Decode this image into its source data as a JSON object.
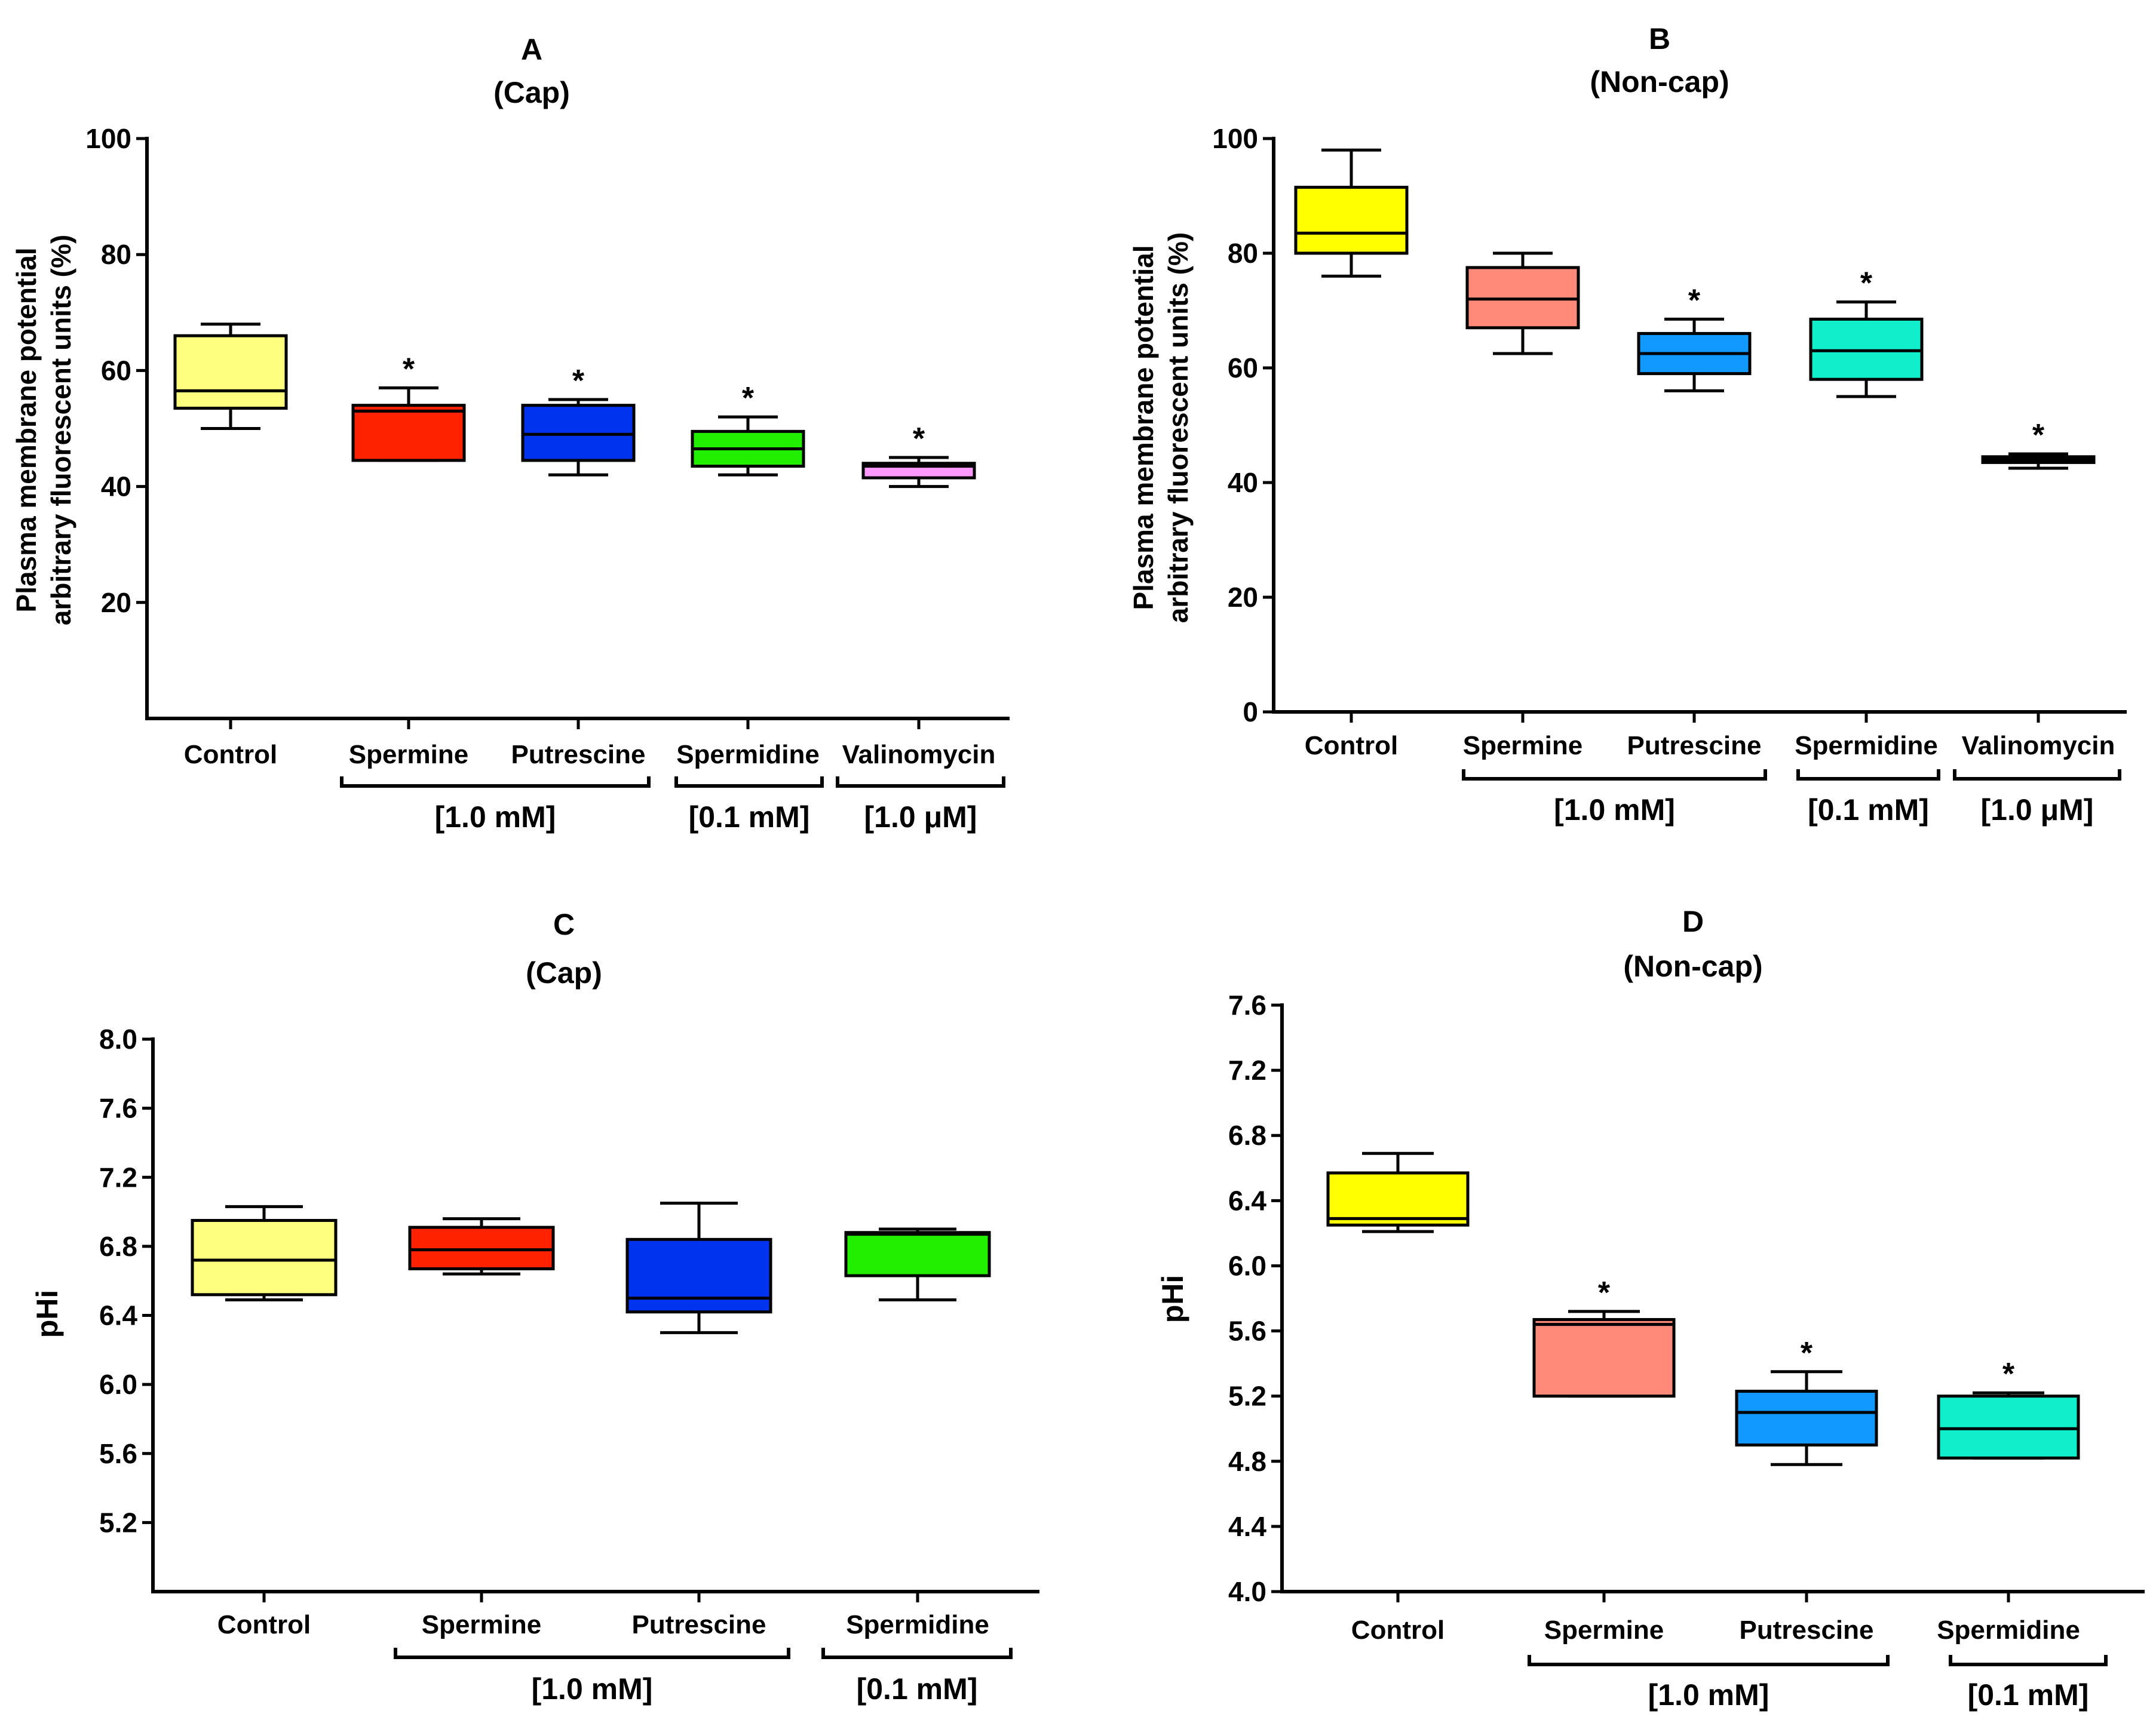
{
  "chart_data": [
    {
      "type": "box",
      "panel": "A",
      "title": "A",
      "subtitle": "(Cap)",
      "ylabel": [
        "Plasma membrane potential",
        "arbitrary fluorescent units (%)"
      ],
      "ylim": [
        0,
        100
      ],
      "yticks": [
        "20",
        "40",
        "60",
        "80",
        "100"
      ],
      "ytick_values": [
        20,
        40,
        60,
        80,
        100
      ],
      "categories": [
        "Control",
        "Spermine",
        "Putrescine",
        "Spermidine",
        "Valinomycin"
      ],
      "colors": [
        "#FFFF7F",
        "#FF2200",
        "#0033EE",
        "#22EE00",
        "#FF99FF"
      ],
      "boxes": [
        {
          "min": 50,
          "q1": 53.5,
          "median": 56.5,
          "q3": 66,
          "max": 68,
          "sig": ""
        },
        {
          "min": 44.5,
          "q1": 44.5,
          "median": 53,
          "q3": 54,
          "max": 57,
          "sig": "*"
        },
        {
          "min": 42,
          "q1": 44.5,
          "median": 49,
          "q3": 54,
          "max": 55,
          "sig": "*"
        },
        {
          "min": 42,
          "q1": 43.5,
          "median": 46.5,
          "q3": 49.5,
          "max": 52,
          "sig": "*"
        },
        {
          "min": 40,
          "q1": 41.5,
          "median": 43.5,
          "q3": 44,
          "max": 45,
          "sig": "*"
        }
      ],
      "groups": [
        {
          "label": "[1.0 mM]",
          "from": 1,
          "to": 2
        },
        {
          "label": "[0.1 mM]",
          "from": 3,
          "to": 3
        },
        {
          "label": "[1.0 μM]",
          "from": 4,
          "to": 4
        }
      ]
    },
    {
      "type": "box",
      "panel": "B",
      "title": "B",
      "subtitle": "(Non-cap)",
      "ylabel": [
        "Plasma membrane potential",
        "arbitrary fluorescent units (%)"
      ],
      "ylim": [
        0,
        100
      ],
      "yticks": [
        "0",
        "20",
        "40",
        "60",
        "80",
        "100"
      ],
      "ytick_values": [
        0,
        20,
        40,
        60,
        80,
        100
      ],
      "categories": [
        "Control",
        "Spermine",
        "Putrescine",
        "Spermidine",
        "Valinomycin"
      ],
      "colors": [
        "#FFFF00",
        "#FF8A7A",
        "#1199FF",
        "#11EECC",
        "#111111"
      ],
      "boxes": [
        {
          "min": 76,
          "q1": 80,
          "median": 83.5,
          "q3": 91.5,
          "max": 98,
          "sig": ""
        },
        {
          "min": 62.5,
          "q1": 67,
          "median": 72,
          "q3": 77.5,
          "max": 80,
          "sig": ""
        },
        {
          "min": 56,
          "q1": 59,
          "median": 62.5,
          "q3": 66,
          "max": 68.5,
          "sig": "*"
        },
        {
          "min": 55,
          "q1": 58,
          "median": 63,
          "q3": 68.5,
          "max": 71.5,
          "sig": "*"
        },
        {
          "min": 42.5,
          "q1": 43.5,
          "median": 44,
          "q3": 44.5,
          "max": 45,
          "sig": "*"
        }
      ],
      "groups": [
        {
          "label": "[1.0 mM]",
          "from": 1,
          "to": 2
        },
        {
          "label": "[0.1 mM]",
          "from": 3,
          "to": 3
        },
        {
          "label": "[1.0 μM]",
          "from": 4,
          "to": 4
        }
      ]
    },
    {
      "type": "box",
      "panel": "C",
      "title": "C",
      "subtitle": "(Cap)",
      "ylabel": [
        "pHi"
      ],
      "ylim": [
        4.8,
        8.0
      ],
      "yticks": [
        "5.2",
        "5.6",
        "6.0",
        "6.4",
        "6.8",
        "7.2",
        "7.6",
        "8.0"
      ],
      "ytick_values": [
        5.2,
        5.6,
        6.0,
        6.4,
        6.8,
        7.2,
        7.6,
        8.0
      ],
      "categories": [
        "Control",
        "Spermine",
        "Putrescine",
        "Spermidine"
      ],
      "colors": [
        "#FFFF7F",
        "#FF2200",
        "#0033EE",
        "#22EE00"
      ],
      "boxes": [
        {
          "min": 6.49,
          "q1": 6.52,
          "median": 6.72,
          "q3": 6.95,
          "max": 7.03,
          "sig": ""
        },
        {
          "min": 6.64,
          "q1": 6.67,
          "median": 6.78,
          "q3": 6.91,
          "max": 6.96,
          "sig": ""
        },
        {
          "min": 6.3,
          "q1": 6.42,
          "median": 6.5,
          "q3": 6.84,
          "max": 7.05,
          "sig": ""
        },
        {
          "min": 6.49,
          "q1": 6.63,
          "median": 6.87,
          "q3": 6.88,
          "max": 6.9,
          "sig": ""
        }
      ],
      "groups": [
        {
          "label": "[1.0 mM]",
          "from": 1,
          "to": 2
        },
        {
          "label": "[0.1 mM]",
          "from": 3,
          "to": 3
        }
      ]
    },
    {
      "type": "box",
      "panel": "D",
      "title": "D",
      "subtitle": "(Non-cap)",
      "ylabel": [
        "pHi"
      ],
      "ylim": [
        4.0,
        7.6
      ],
      "yticks": [
        "4.0",
        "4.4",
        "4.8",
        "5.2",
        "5.6",
        "6.0",
        "6.4",
        "6.8",
        "7.2",
        "7.6"
      ],
      "ytick_values": [
        4.0,
        4.4,
        4.8,
        5.2,
        5.6,
        6.0,
        6.4,
        6.8,
        7.2,
        7.6
      ],
      "categories": [
        "Control",
        "Spermine",
        "Putrescine",
        "Spermidine"
      ],
      "colors": [
        "#FFFF00",
        "#FF8A7A",
        "#1199FF",
        "#11EECC"
      ],
      "boxes": [
        {
          "min": 6.21,
          "q1": 6.25,
          "median": 6.29,
          "q3": 6.57,
          "max": 6.69,
          "sig": ""
        },
        {
          "min": 5.2,
          "q1": 5.2,
          "median": 5.64,
          "q3": 5.67,
          "max": 5.72,
          "sig": "*"
        },
        {
          "min": 4.78,
          "q1": 4.9,
          "median": 5.1,
          "q3": 5.23,
          "max": 5.35,
          "sig": "*"
        },
        {
          "min": 4.82,
          "q1": 4.82,
          "median": 5.0,
          "q3": 5.2,
          "max": 5.22,
          "sig": "*"
        }
      ],
      "groups": [
        {
          "label": "[1.0 mM]",
          "from": 1,
          "to": 2
        },
        {
          "label": "[0.1 mM]",
          "from": 3,
          "to": 3
        }
      ]
    }
  ]
}
